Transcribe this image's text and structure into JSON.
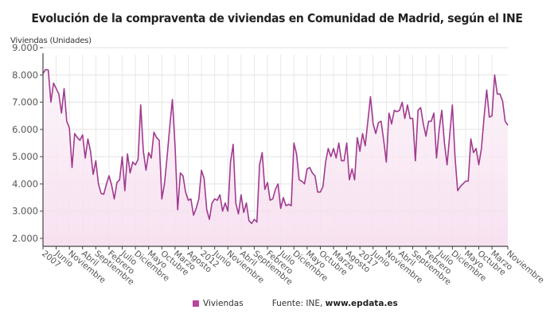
{
  "chart_data": {
    "type": "area",
    "title": "Evolución de la compraventa de viviendas en Comunidad de Madrid, según el INE",
    "ylabel": "Viviendas (Unidades)",
    "xlabel": "",
    "ylim": [
      2000,
      9000
    ],
    "yticks": [
      2000,
      3000,
      4000,
      5000,
      6000,
      7000,
      8000,
      9000
    ],
    "ytick_labels": [
      "2.000",
      "3.000",
      "4.000",
      "5.000",
      "6.000",
      "7.000",
      "8.000",
      "9.000"
    ],
    "x_start": "2007-01",
    "x_end": "2021-11",
    "xtick_every_months": 5,
    "xtick_labels": [
      "2007",
      "Junio",
      "Noviembre",
      "Abril",
      "Septiembre",
      "Febrero",
      "Julio",
      "Diciembre",
      "Mayo",
      "Octubre",
      "Marzo",
      "Agosto",
      "2012",
      "Junio",
      "Noviembre",
      "Abril",
      "Septiembre",
      "Febrero",
      "Julio",
      "Diciembre",
      "Mayo",
      "Octubre",
      "Marzo",
      "Agosto",
      "2017",
      "Junio",
      "Noviembre",
      "Abril",
      "Septiembre",
      "Febrero",
      "Julio",
      "Diciembre",
      "Mayo",
      "Octubre",
      "Marzo",
      "Noviembre"
    ],
    "grid": true,
    "legend_position": "bottom",
    "series": [
      {
        "name": "Viviendas",
        "color": "#a03a8f",
        "fill": "#f7e6f2",
        "values": [
          8050,
          8200,
          8180,
          7000,
          7700,
          7500,
          7300,
          6600,
          7500,
          6300,
          6050,
          4600,
          5850,
          5700,
          5600,
          5800,
          4950,
          5650,
          5200,
          4350,
          4850,
          4000,
          3650,
          3620,
          3980,
          4300,
          3950,
          3450,
          4050,
          4150,
          5000,
          3750,
          5100,
          4400,
          4800,
          4700,
          4900,
          6900,
          5200,
          4500,
          5150,
          4950,
          5900,
          5700,
          5600,
          3450,
          4000,
          5000,
          6100,
          7100,
          5400,
          3050,
          4400,
          4300,
          3700,
          3400,
          3450,
          2850,
          3100,
          3450,
          4500,
          4200,
          3050,
          2700,
          3300,
          3450,
          3400,
          3600,
          3000,
          3300,
          3000,
          4800,
          5450,
          3300,
          2900,
          3600,
          2950,
          3300,
          2650,
          2550,
          2700,
          2600,
          4700,
          5150,
          3800,
          4050,
          3400,
          3450,
          3800,
          4000,
          3100,
          3500,
          3200,
          3250,
          3200,
          5500,
          5100,
          4150,
          4100,
          4000,
          4550,
          4600,
          4400,
          4300,
          3700,
          3700,
          3900,
          4800,
          5300,
          5000,
          5300,
          4950,
          5500,
          4850,
          4850,
          5500,
          4150,
          4550,
          4150,
          5700,
          5200,
          5850,
          5400,
          6300,
          7200,
          6200,
          5850,
          6250,
          6300,
          5600,
          4800,
          6600,
          6200,
          6700,
          6650,
          6700,
          7000,
          6400,
          6900,
          6400,
          6400,
          4850,
          6700,
          6800,
          6200,
          5750,
          6300,
          6300,
          6600,
          4950,
          6000,
          6700,
          5500,
          4700,
          5800,
          6900,
          5000,
          3750,
          3900,
          4000,
          4100,
          4100,
          5650,
          5150,
          5300,
          4700,
          5300,
          6450,
          7450,
          6450,
          6500,
          8000,
          7300,
          7300,
          7050,
          6300,
          6150
        ]
      }
    ]
  },
  "legend": {
    "label": "Viviendas",
    "source_prefix": "Fuente: INE, ",
    "source_site": "www.epdata.es"
  }
}
